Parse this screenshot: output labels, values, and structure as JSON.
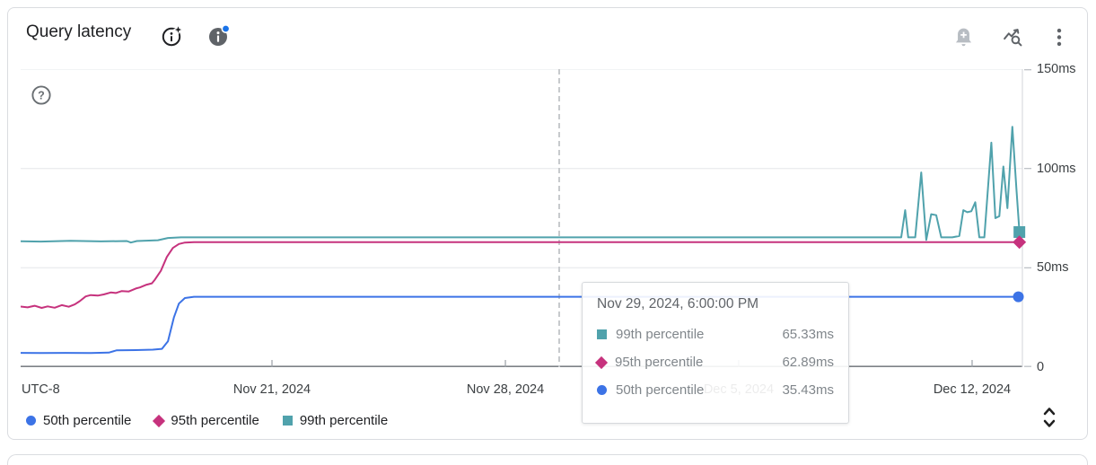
{
  "header": {
    "title": "Query latency"
  },
  "icons": [
    "ai-insight-icon",
    "info-icon",
    "notification-dot",
    "add-alert-icon",
    "explore-data-icon",
    "more-options-icon",
    "help-icon",
    "unfold-icon"
  ],
  "chart_data": {
    "type": "line",
    "title": "Query latency",
    "y_unit": "ms",
    "ylim": [
      0,
      150
    ],
    "grid": true,
    "x_axis_note": "UTC-8",
    "y_ticks": [
      {
        "label": "150ms",
        "value": 150
      },
      {
        "label": "100ms",
        "value": 100
      },
      {
        "label": "50ms",
        "value": 50
      },
      {
        "label": "0",
        "value": 0
      }
    ],
    "x_ticks": [
      {
        "label": "Nov 21, 2024",
        "pos": 0.2509
      },
      {
        "label": "Nov 28, 2024",
        "pos": 0.4839
      },
      {
        "label": "Dec 5, 2024",
        "pos": 0.7168
      },
      {
        "label": "Dec 12, 2024",
        "pos": 0.9498
      }
    ],
    "crosshair": {
      "pos": 0.5376,
      "color": "#c6c9cc"
    },
    "series": [
      {
        "name": "99th percentile",
        "color": "#50A2AC",
        "marker": "square",
        "points": [
          [
            0,
            63.4
          ],
          [
            0.02,
            63.2
          ],
          [
            0.05,
            63.6
          ],
          [
            0.08,
            63.3
          ],
          [
            0.106,
            63.5
          ],
          [
            0.11,
            62.7
          ],
          [
            0.116,
            63.5
          ],
          [
            0.137,
            63.9
          ],
          [
            0.147,
            65.0
          ],
          [
            0.16,
            65.33
          ],
          [
            0.879,
            65.33
          ],
          [
            0.883,
            79
          ],
          [
            0.886,
            65.33
          ],
          [
            0.893,
            65.33
          ],
          [
            0.899,
            98
          ],
          [
            0.904,
            64
          ],
          [
            0.909,
            77
          ],
          [
            0.914,
            76.5
          ],
          [
            0.919,
            65.33
          ],
          [
            0.93,
            65.33
          ],
          [
            0.937,
            66
          ],
          [
            0.941,
            79
          ],
          [
            0.945,
            78
          ],
          [
            0.949,
            78.5
          ],
          [
            0.953,
            83
          ],
          [
            0.957,
            65.33
          ],
          [
            0.962,
            65.33
          ],
          [
            0.969,
            113
          ],
          [
            0.973,
            75
          ],
          [
            0.977,
            76
          ],
          [
            0.981,
            101
          ],
          [
            0.985,
            80
          ],
          [
            0.99,
            121
          ],
          [
            0.994,
            90
          ],
          [
            0.997,
            68
          ]
        ]
      },
      {
        "name": "95th percentile",
        "color": "#C6327D",
        "marker": "diamond",
        "points": [
          [
            0,
            30.5
          ],
          [
            0.007,
            30.1
          ],
          [
            0.014,
            30.9
          ],
          [
            0.021,
            29.8
          ],
          [
            0.027,
            30.6
          ],
          [
            0.034,
            29.9
          ],
          [
            0.041,
            31.2
          ],
          [
            0.048,
            30.4
          ],
          [
            0.054,
            31.6
          ],
          [
            0.059,
            33.2
          ],
          [
            0.065,
            35.6
          ],
          [
            0.07,
            36.3
          ],
          [
            0.077,
            36.0
          ],
          [
            0.083,
            36.6
          ],
          [
            0.09,
            37.6
          ],
          [
            0.095,
            37.3
          ],
          [
            0.101,
            38.3
          ],
          [
            0.108,
            38.1
          ],
          [
            0.115,
            39.6
          ],
          [
            0.119,
            40.1
          ],
          [
            0.125,
            41.4
          ],
          [
            0.131,
            42.2
          ],
          [
            0.134,
            44.0
          ],
          [
            0.14,
            48.5
          ],
          [
            0.146,
            55.5
          ],
          [
            0.152,
            60.0
          ],
          [
            0.158,
            62.0
          ],
          [
            0.164,
            62.7
          ],
          [
            0.173,
            62.89
          ],
          [
            0.997,
            62.89
          ]
        ]
      },
      {
        "name": "50th percentile",
        "color": "#3C73E6",
        "marker": "circle",
        "points": [
          [
            0,
            7.2
          ],
          [
            0.02,
            7.1
          ],
          [
            0.045,
            7.2
          ],
          [
            0.07,
            7.1
          ],
          [
            0.088,
            7.3
          ],
          [
            0.096,
            8.5
          ],
          [
            0.115,
            8.6
          ],
          [
            0.132,
            8.8
          ],
          [
            0.141,
            9.2
          ],
          [
            0.147,
            13
          ],
          [
            0.153,
            25
          ],
          [
            0.158,
            32
          ],
          [
            0.164,
            34.8
          ],
          [
            0.173,
            35.43
          ],
          [
            0.996,
            35.43
          ]
        ]
      }
    ]
  },
  "tooltip": {
    "timestamp": "Nov 29, 2024, 6:00:00 PM",
    "rows": [
      {
        "series": "99th percentile",
        "value": "65.33ms"
      },
      {
        "series": "95th percentile",
        "value": "62.89ms"
      },
      {
        "series": "50th percentile",
        "value": "35.43ms"
      }
    ]
  },
  "legend": {
    "items": [
      "50th percentile",
      "95th percentile",
      "99th percentile"
    ]
  }
}
